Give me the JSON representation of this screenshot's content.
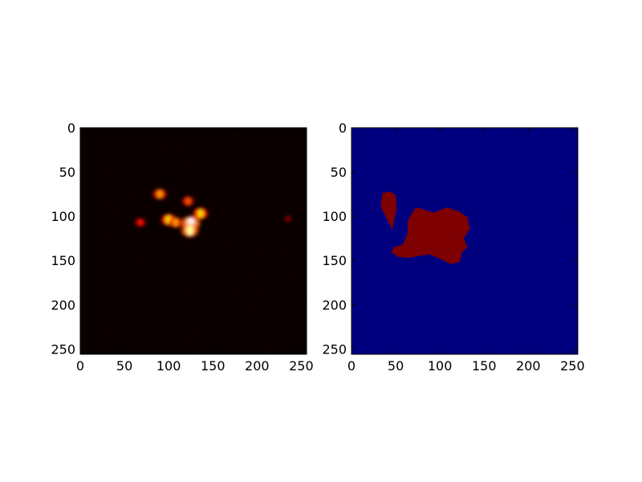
{
  "figure": {
    "background": "#ffffff",
    "panel_count": 2
  },
  "chart_data": [
    {
      "type": "heatmap",
      "title": "",
      "xlabel": "",
      "ylabel": "",
      "xlim": [
        0,
        256
      ],
      "ylim": [
        256,
        0
      ],
      "xticks": [
        0,
        50,
        100,
        150,
        200,
        250
      ],
      "yticks": [
        0,
        50,
        100,
        150,
        200,
        250
      ],
      "colormap": "hot",
      "background_color": "#0a0000",
      "grid": false,
      "legend": "none",
      "hotspots": [
        {
          "x": 125,
          "y": 108,
          "value": 1.0
        },
        {
          "x": 124,
          "y": 116,
          "value": 0.9
        },
        {
          "x": 100,
          "y": 104,
          "value": 0.7
        },
        {
          "x": 108,
          "y": 107,
          "value": 0.6
        },
        {
          "x": 136,
          "y": 97,
          "value": 0.7
        },
        {
          "x": 90,
          "y": 75,
          "value": 0.6
        },
        {
          "x": 122,
          "y": 83,
          "value": 0.5
        },
        {
          "x": 68,
          "y": 107,
          "value": 0.4
        },
        {
          "x": 235,
          "y": 103,
          "value": 0.2
        }
      ]
    },
    {
      "type": "heatmap",
      "title": "",
      "xlabel": "",
      "ylabel": "",
      "xlim": [
        0,
        256
      ],
      "ylim": [
        256,
        0
      ],
      "xticks": [
        0,
        50,
        100,
        150,
        200,
        250
      ],
      "yticks": [
        0,
        50,
        100,
        150,
        200,
        250
      ],
      "colormap": "jet",
      "background_color": "#00007f",
      "mask_color": "#7f0000",
      "grid": false,
      "legend": "none",
      "regions": [
        {
          "label": 1,
          "polygon": [
            [
              35,
              74
            ],
            [
              43,
              72
            ],
            [
              50,
              76
            ],
            [
              51,
              92
            ],
            [
              48,
              106
            ],
            [
              46,
              115
            ],
            [
              43,
              109
            ],
            [
              38,
              99
            ],
            [
              33,
              89
            ]
          ]
        },
        {
          "label": 1,
          "polygon": [
            [
              73,
              90
            ],
            [
              80,
              92
            ],
            [
              93,
              96
            ],
            [
              108,
              90
            ],
            [
              122,
              95
            ],
            [
              131,
              101
            ],
            [
              134,
              114
            ],
            [
              127,
              125
            ],
            [
              131,
              135
            ],
            [
              125,
              141
            ],
            [
              122,
              152
            ],
            [
              112,
              154
            ],
            [
              100,
              148
            ],
            [
              88,
              143
            ],
            [
              76,
              145
            ],
            [
              65,
              147
            ],
            [
              53,
              146
            ],
            [
              45,
              141
            ],
            [
              48,
              135
            ],
            [
              58,
              132
            ],
            [
              63,
              121
            ],
            [
              64,
              105
            ],
            [
              68,
              97
            ]
          ]
        }
      ]
    }
  ]
}
